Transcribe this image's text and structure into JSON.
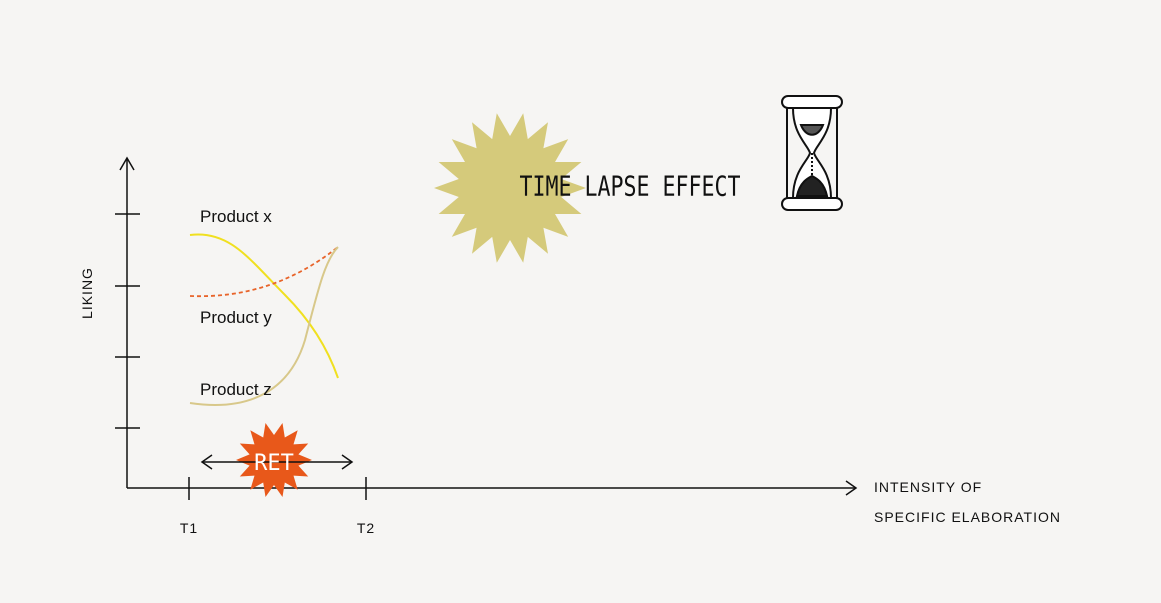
{
  "title": "TIME LAPSE EFFECT",
  "badge": "RET",
  "axes": {
    "y_label": "LIKING",
    "x_label": [
      "INTENSITY OF",
      "SPECIFIC ELABORATION"
    ],
    "x_ticks": [
      "T1",
      "T2"
    ]
  },
  "products": [
    "Product x",
    "Product y",
    "Product z"
  ]
}
